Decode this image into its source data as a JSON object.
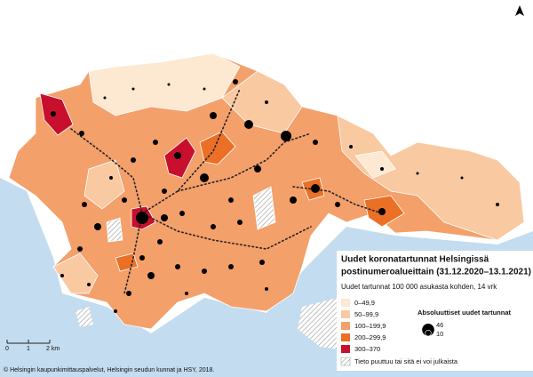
{
  "title_lines": [
    "Uudet koronatartunnat Helsingissä",
    "postinumeroalueittain (31.12.2020–13.1.2021)"
  ],
  "subtitle": "Uudet tartunnat 100 000 asukasta kohden, 14 vrk",
  "legend": {
    "classes": [
      {
        "label": "0–49,9",
        "color": "#fde8d2"
      },
      {
        "label": "50–99,9",
        "color": "#f9c9a2"
      },
      {
        "label": "100–199,9",
        "color": "#f4a06a"
      },
      {
        "label": "200–299,9",
        "color": "#ec6f26"
      },
      {
        "label": "300–370",
        "color": "#c8102e"
      }
    ],
    "no_data": "Tieto puuttuu tai sitä ei voi julkaista"
  },
  "bubble_legend": {
    "title": "Absoluuttiset uudet tartunnat",
    "values": [
      46,
      10
    ]
  },
  "scale_bar": {
    "labels": [
      "0",
      "1",
      "2 km"
    ]
  },
  "credits": "© Helsingin kaupunkimittauspalvelut, Helsingin seudun kunnat ja HSY, 2018."
}
